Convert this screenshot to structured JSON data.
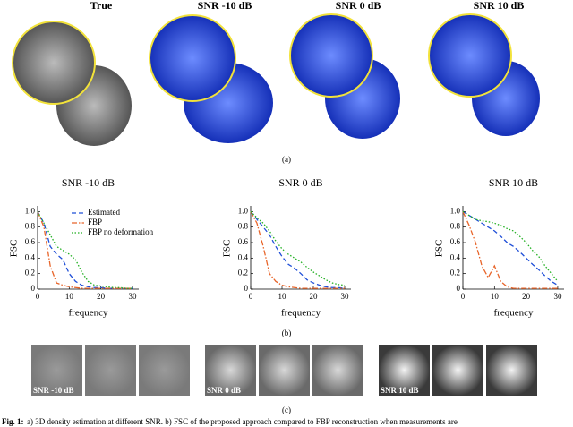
{
  "panel_a": {
    "labels": [
      "True",
      "SNR -10 dB",
      "SNR 0 dB",
      "SNR 10 dB"
    ],
    "tag": "(a)"
  },
  "chart_data": [
    {
      "type": "line",
      "title": "SNR -10 dB",
      "xlabel": "frequency",
      "ylabel": "FSC",
      "x": [
        0,
        2,
        4,
        6,
        8,
        10,
        12,
        14,
        16,
        18,
        20,
        22,
        24,
        26,
        28,
        30
      ],
      "xlim": [
        0,
        32
      ],
      "xticks": [
        0,
        10,
        20,
        30
      ],
      "ylim": [
        0,
        1.05
      ],
      "yticks": [
        0,
        0.2,
        0.4,
        0.6,
        0.8,
        {
          "value": 1,
          "label": "1.0"
        }
      ],
      "legend": "upper right",
      "series": [
        {
          "name": "Estimated",
          "color": "#1f4fd8",
          "style": "dashed",
          "values": [
            1.0,
            0.85,
            0.55,
            0.45,
            0.38,
            0.2,
            0.1,
            0.05,
            0.03,
            0.02,
            0.02,
            0.01,
            0.01,
            0.01,
            0.01,
            0.01
          ]
        },
        {
          "name": "FBP",
          "color": "#e8652a",
          "style": "dashdot",
          "values": [
            1.0,
            0.8,
            0.3,
            0.08,
            0.05,
            0.03,
            0.02,
            0.01,
            0.01,
            0.01,
            0.01,
            0.01,
            0.01,
            0.01,
            0.01,
            0.01
          ]
        },
        {
          "name": "FBP no deformation",
          "color": "#22b022",
          "style": "dotted",
          "values": [
            1.0,
            0.85,
            0.7,
            0.55,
            0.5,
            0.45,
            0.38,
            0.22,
            0.1,
            0.05,
            0.04,
            0.03,
            0.02,
            0.02,
            0.01,
            0.01
          ]
        }
      ]
    },
    {
      "type": "line",
      "title": "SNR 0 dB",
      "xlabel": "frequency",
      "ylabel": "FSC",
      "x": [
        0,
        2,
        4,
        6,
        8,
        10,
        12,
        14,
        16,
        18,
        20,
        22,
        24,
        26,
        28,
        30
      ],
      "xlim": [
        0,
        32
      ],
      "xticks": [
        0,
        10,
        20,
        30
      ],
      "ylim": [
        0,
        1.05
      ],
      "yticks": [
        0,
        0.2,
        0.4,
        0.6,
        0.8,
        {
          "value": 1,
          "label": "1.0"
        }
      ],
      "series": [
        {
          "color": "#1f4fd8",
          "style": "dashed",
          "values": [
            1.0,
            0.9,
            0.8,
            0.7,
            0.55,
            0.42,
            0.32,
            0.27,
            0.2,
            0.12,
            0.08,
            0.05,
            0.03,
            0.02,
            0.02,
            0.01
          ]
        },
        {
          "color": "#e8652a",
          "style": "dashdot",
          "values": [
            1.0,
            0.85,
            0.55,
            0.2,
            0.1,
            0.05,
            0.03,
            0.02,
            0.01,
            0.01,
            0.01,
            0.01,
            0.01,
            0.01,
            0.01,
            0.01
          ]
        },
        {
          "color": "#22b022",
          "style": "dotted",
          "values": [
            1.0,
            0.92,
            0.85,
            0.75,
            0.62,
            0.52,
            0.45,
            0.4,
            0.35,
            0.28,
            0.22,
            0.17,
            0.12,
            0.08,
            0.06,
            0.05
          ]
        }
      ]
    },
    {
      "type": "line",
      "title": "SNR 10 dB",
      "xlabel": "frequency",
      "ylabel": "FSC",
      "x": [
        0,
        2,
        4,
        6,
        8,
        10,
        12,
        14,
        16,
        18,
        20,
        22,
        24,
        26,
        28,
        30
      ],
      "xlim": [
        0,
        32
      ],
      "xticks": [
        0,
        10,
        20,
        30
      ],
      "ylim": [
        0,
        1.05
      ],
      "yticks": [
        0,
        0.2,
        0.4,
        0.6,
        0.8,
        {
          "value": 1,
          "label": "1.0"
        }
      ],
      "series": [
        {
          "color": "#1f4fd8",
          "style": "dashed",
          "values": [
            1.0,
            0.95,
            0.9,
            0.85,
            0.8,
            0.75,
            0.68,
            0.6,
            0.55,
            0.48,
            0.4,
            0.32,
            0.25,
            0.17,
            0.1,
            0.05
          ]
        },
        {
          "color": "#e8652a",
          "style": "dashdot",
          "values": [
            1.0,
            0.82,
            0.6,
            0.3,
            0.15,
            0.3,
            0.1,
            0.03,
            0.01,
            0.01,
            0.01,
            0.01,
            0.01,
            0.01,
            0.01,
            0.01
          ]
        },
        {
          "color": "#22b022",
          "style": "dotted",
          "values": [
            1.0,
            0.95,
            0.9,
            0.88,
            0.87,
            0.85,
            0.82,
            0.78,
            0.75,
            0.68,
            0.6,
            0.5,
            0.42,
            0.3,
            0.2,
            0.1
          ]
        }
      ]
    }
  ],
  "panel_b": {
    "tag": "(b)"
  },
  "panel_c": {
    "labels": [
      "SNR -10 dB",
      "SNR 0 dB",
      "SNR 10 dB"
    ],
    "tag": "(c)"
  },
  "caption": {
    "label": "Fig. 1:",
    "text": "a) 3D density estimation at different SNR. b) FSC of the proposed approach compared to FBP reconstruction when measurements are"
  }
}
